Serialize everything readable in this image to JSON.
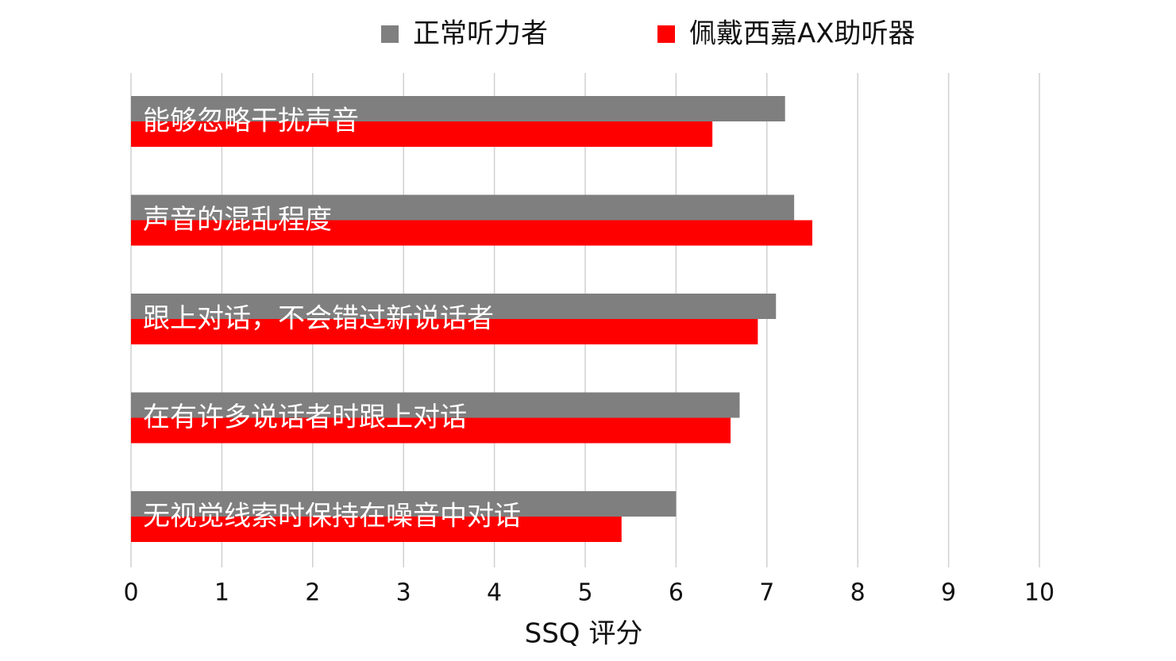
{
  "chart_data": {
    "type": "hbar",
    "x_label": "SSQ 评分",
    "categories": [
      "能够忽略干扰声音",
      "声音的混乱程度",
      "跟上对话，不会错过新说话者",
      "在有许多说话者时跟上对话",
      "无视觉线索时保持在噪音中对话"
    ],
    "series": [
      {
        "name": "正常听力者",
        "color": "#7f7f7f",
        "values": [
          7.2,
          7.3,
          7.1,
          6.7,
          6.0
        ]
      },
      {
        "name": "佩戴西嘉AX助听器",
        "color": "#ff0000",
        "values": [
          6.4,
          7.5,
          6.9,
          6.6,
          5.4
        ]
      }
    ],
    "xlim": [
      0,
      10
    ],
    "xticks": [
      0,
      1,
      2,
      3,
      4,
      5,
      6,
      7,
      8,
      9,
      10
    ],
    "grid": true,
    "legend": "top"
  }
}
